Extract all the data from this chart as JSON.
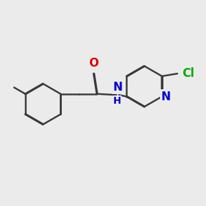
{
  "bg_color": "#ebebeb",
  "bond_color": "#3a3a3a",
  "bond_width": 1.8,
  "dbo": 0.018,
  "atom_colors": {
    "O": "#dd0000",
    "N": "#0000cc",
    "Cl": "#00aa00"
  },
  "font_size_atom": 12,
  "font_size_H": 10,
  "fig_size": [
    3.0,
    3.0
  ],
  "dpi": 100
}
